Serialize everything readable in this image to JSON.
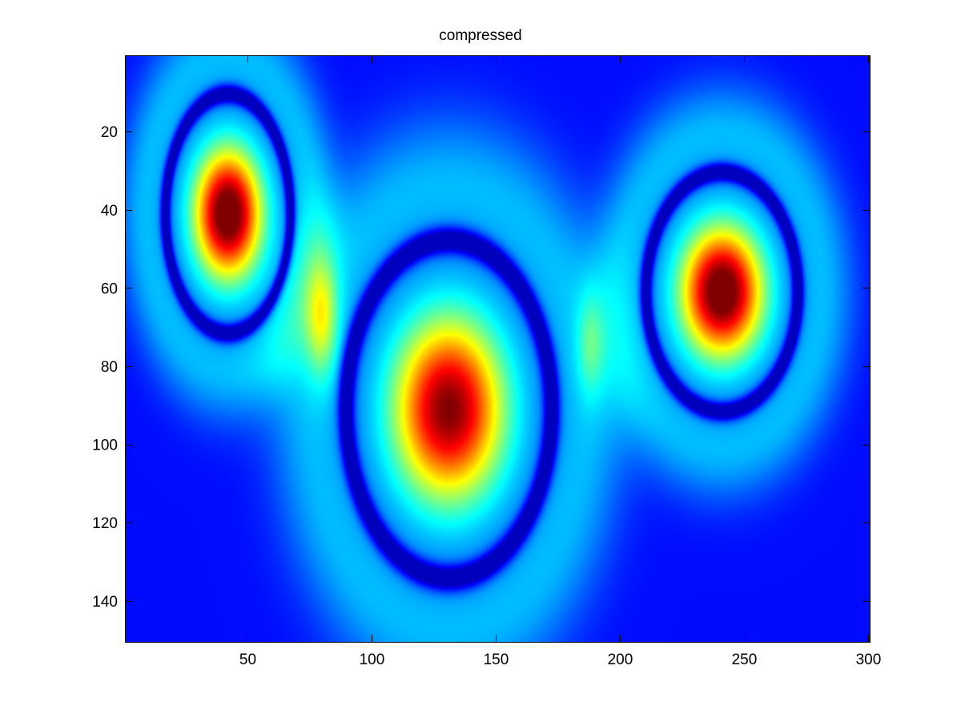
{
  "chart_data": {
    "type": "heatmap",
    "title": "compressed",
    "xlabel": "",
    "ylabel": "",
    "xlim": [
      0.5,
      300.5
    ],
    "ylim": [
      0.5,
      150.5
    ],
    "y_reversed": true,
    "x_ticks": [
      50,
      100,
      150,
      200,
      250,
      300
    ],
    "y_ticks": [
      20,
      40,
      60,
      80,
      100,
      120,
      140
    ],
    "colormap": "jet",
    "value_range": [
      0,
      1
    ],
    "grid": false,
    "legend": "none",
    "peaks": [
      {
        "x": 42,
        "y": 41,
        "sx": 14,
        "sy": 17,
        "amplitude": 1.0
      },
      {
        "x": 131,
        "y": 91,
        "sx": 23,
        "sy": 24,
        "amplitude": 0.92
      },
      {
        "x": 241,
        "y": 61,
        "sx": 17,
        "sy": 17,
        "amplitude": 1.0
      }
    ],
    "faint_ridges": [
      {
        "x": 80,
        "y": 68,
        "sx": 6,
        "sy": 14,
        "amplitude": 0.28
      },
      {
        "x": 188,
        "y": 75,
        "sx": 5,
        "sy": 12,
        "amplitude": 0.14
      }
    ]
  }
}
